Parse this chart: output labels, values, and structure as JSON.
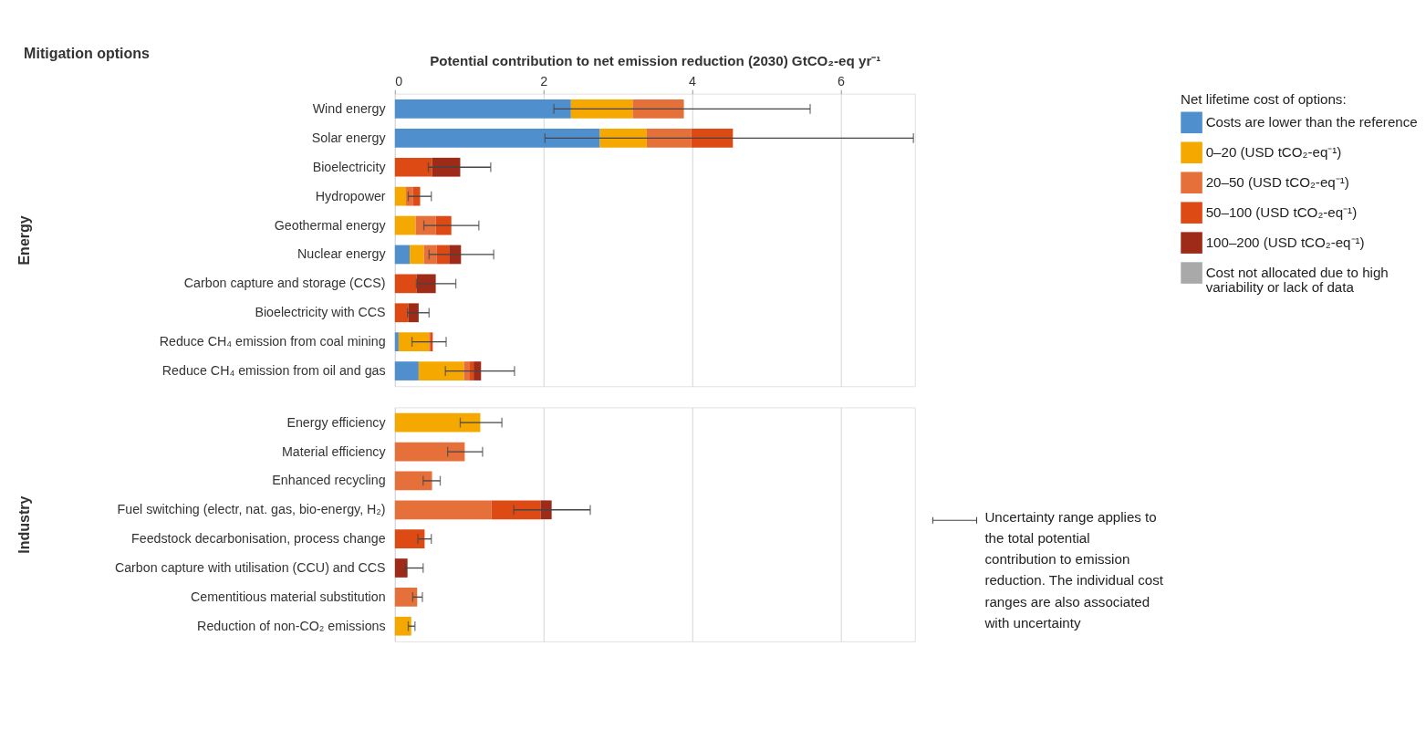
{
  "chart_data": [
    {
      "type": "bar",
      "orientation": "horizontal",
      "stacked": true,
      "xlabel": "Potential contribution to net emission reduction (2030) GtCO₂-eq yr⁻¹",
      "ylabel": "Energy",
      "annotations": [
        "Mitigation options"
      ],
      "categories": [
        "Wind energy",
        "Solar energy",
        "Bioelectricity",
        "Hydropower",
        "Geothermal energy",
        "Nuclear energy",
        "Carbon capture and storage (CCS)",
        "Bioelectricity with CCS",
        "Reduce CH₄ emission from coal mining",
        "Reduce CH₄ emission from oil and gas"
      ],
      "series": [
        {
          "name": "Costs are lower than the reference",
          "color": "#4f8fcd",
          "values": [
            2.37,
            2.76,
            null,
            null,
            null,
            0.2,
            null,
            null,
            0.05,
            0.32
          ]
        },
        {
          "name": "0–20 (USD tCO₂-eq⁻¹)",
          "color": "#f5a800",
          "values": [
            0.83,
            0.63,
            null,
            0.15,
            0.28,
            0.19,
            null,
            null,
            0.41,
            0.61
          ]
        },
        {
          "name": "20–50 (USD tCO₂-eq⁻¹)",
          "color": "#e6703a",
          "values": [
            0.69,
            0.6,
            null,
            0.09,
            0.27,
            0.17,
            null,
            null,
            0.02,
            0.07
          ],
          "errors": [
            [
              2.14,
              5.59
            ],
            null,
            null,
            null,
            null,
            null,
            null,
            null,
            null,
            null
          ]
        },
        {
          "name": "50–100 (USD tCO₂-eq⁻¹)",
          "color": "#dd4a14",
          "values": [
            null,
            0.56,
            0.5,
            0.1,
            0.21,
            0.17,
            0.29,
            0.18,
            0.03,
            0.06
          ],
          "errors": [
            null,
            [
              2.02,
              6.98
            ],
            null,
            [
              0.18,
              0.49
            ],
            [
              0.39,
              1.13
            ],
            null,
            null,
            null,
            [
              0.23,
              0.69
            ],
            null
          ]
        },
        {
          "name": "100–200 (USD tCO₂-eq⁻¹)",
          "color": "#9e2a18",
          "values": [
            null,
            null,
            0.38,
            null,
            null,
            0.16,
            0.26,
            0.14,
            null,
            0.1
          ],
          "errors": [
            null,
            null,
            [
              0.45,
              1.29
            ],
            null,
            null,
            [
              0.46,
              1.33
            ],
            [
              0.29,
              0.82
            ],
            [
              0.17,
              0.46
            ],
            null,
            [
              0.68,
              1.61
            ]
          ]
        },
        {
          "name": "Cost not allocated due to high variability or lack of data",
          "color": "#a9a9a9",
          "values": [
            null,
            null,
            null,
            null,
            null,
            null,
            null,
            null,
            null,
            null
          ]
        }
      ],
      "xlim": [
        0,
        7
      ],
      "xticks": [
        0,
        2,
        4,
        6
      ],
      "grid": "x",
      "legend": "right",
      "legend_title": "Net lifetime cost of options:"
    },
    {
      "type": "bar",
      "orientation": "horizontal",
      "stacked": true,
      "ylabel": "Industry",
      "annotations": [
        "Uncertainty range applies to the total potential contribution to emission reduction. The individual cost ranges are also associated with uncertainty"
      ],
      "categories": [
        "Energy efficiency",
        "Material efficiency",
        "Enhanced recycling",
        "Fuel switching (electr, nat. gas, bio-energy, H₂)",
        "Feedstock decarbonisation, process change",
        "Carbon capture with utilisation (CCU) and CCS",
        "Cementitious material substitution",
        "Reduction of non-CO₂ emissions"
      ],
      "series": [
        {
          "name": "0–20 (USD tCO₂-eq⁻¹)",
          "color": "#f5a800",
          "values": [
            1.15,
            null,
            null,
            null,
            null,
            null,
            null,
            0.22
          ],
          "errors": [
            [
              0.88,
              1.44
            ],
            null,
            null,
            null,
            null,
            null,
            null,
            [
              0.18,
              0.27
            ]
          ]
        },
        {
          "name": "20–50 (USD tCO₂-eq⁻¹)",
          "color": "#e6703a",
          "values": [
            null,
            0.94,
            0.5,
            1.3,
            null,
            null,
            0.3,
            null
          ],
          "errors": [
            null,
            [
              0.71,
              1.18
            ],
            [
              0.38,
              0.61
            ],
            null,
            null,
            null,
            [
              0.24,
              0.37
            ],
            null
          ]
        },
        {
          "name": "50–100 (USD tCO₂-eq⁻¹)",
          "color": "#dd4a14",
          "values": [
            null,
            null,
            null,
            0.66,
            0.4,
            null,
            null,
            null
          ],
          "errors": [
            null,
            null,
            null,
            null,
            [
              0.31,
              0.49
            ],
            null,
            null,
            null
          ]
        },
        {
          "name": "100–200 (USD tCO₂-eq⁻¹)",
          "color": "#9e2a18",
          "values": [
            null,
            null,
            null,
            0.15,
            null,
            0.17,
            null,
            null
          ],
          "errors": [
            null,
            null,
            null,
            [
              1.6,
              2.63
            ],
            null,
            [
              0.14,
              0.38
            ],
            null,
            null
          ]
        }
      ],
      "xlim": [
        0,
        7
      ],
      "xticks": [
        0,
        2,
        4,
        6
      ],
      "grid": "x",
      "tick_labels": "y"
    }
  ]
}
